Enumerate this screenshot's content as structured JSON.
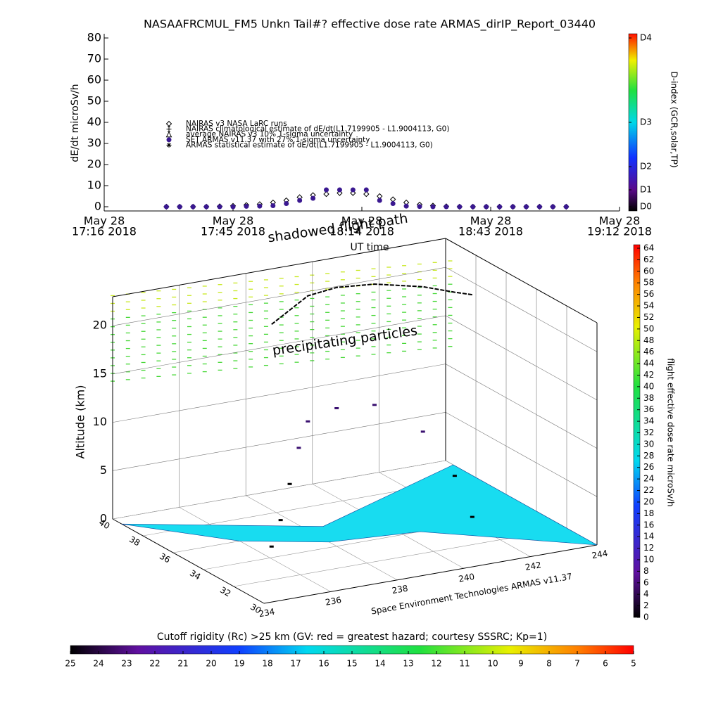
{
  "chart_data": [
    {
      "type": "scatter",
      "title": "NASAAFRCMUL_FM5 Unkn Tail#? effective dose rate ARMAS_dirIP_Report_03440",
      "y_label": "dE/dt microSv/h",
      "x_label": "UT time",
      "xlim": [
        "2018-05-28T17:16",
        "2018-05-28T19:12"
      ],
      "xticks": [
        {
          "value": "2018-05-28T17:16",
          "label": [
            "May 28",
            "17:16 2018"
          ]
        },
        {
          "value": "2018-05-28T17:45",
          "label": [
            "May 28",
            "17:45 2018"
          ]
        },
        {
          "value": "2018-05-28T18:14",
          "label": [
            "May 28",
            "18:14 2018"
          ]
        },
        {
          "value": "2018-05-28T18:43",
          "label": [
            "May 28",
            "18:43 2018"
          ]
        },
        {
          "value": "2018-05-28T19:12",
          "label": [
            "May 28",
            "19:12 2018"
          ]
        }
      ],
      "ylim": [
        -2,
        82
      ],
      "yticks": [
        0,
        10,
        20,
        30,
        40,
        50,
        60,
        70,
        80
      ],
      "x": [
        "2018-05-28T17:30",
        "2018-05-28T17:33",
        "2018-05-28T17:36",
        "2018-05-28T17:39",
        "2018-05-28T17:42",
        "2018-05-28T17:45",
        "2018-05-28T17:48",
        "2018-05-28T17:51",
        "2018-05-28T17:54",
        "2018-05-28T17:57",
        "2018-05-28T18:00",
        "2018-05-28T18:03",
        "2018-05-28T18:06",
        "2018-05-28T18:09",
        "2018-05-28T18:12",
        "2018-05-28T18:15",
        "2018-05-28T18:18",
        "2018-05-28T18:21",
        "2018-05-28T18:24",
        "2018-05-28T18:27",
        "2018-05-28T18:30",
        "2018-05-28T18:33",
        "2018-05-28T18:36",
        "2018-05-28T18:39",
        "2018-05-28T18:42",
        "2018-05-28T18:45",
        "2018-05-28T18:48",
        "2018-05-28T18:51",
        "2018-05-28T18:54",
        "2018-05-28T18:57",
        "2018-05-28T19:00"
      ],
      "series": [
        {
          "name": "NAIRAS v3 NASA LaRC runs",
          "marker": "diamond",
          "color": "#000000",
          "values": [
            0,
            0,
            0,
            0,
            0.2,
            0.4,
            0.8,
            1.2,
            2,
            3,
            4.5,
            5.5,
            6,
            6.5,
            6.5,
            6,
            5,
            3.5,
            2,
            1,
            0.5,
            0.2,
            0,
            0,
            0,
            0,
            0,
            0,
            0,
            0,
            0
          ]
        },
        {
          "name": "NAIRAS climatological estimate of dE/dt(L1.7199905 - L1.9004113, G0)",
          "marker": "plus",
          "color": "#000000"
        },
        {
          "name": "average NAIRAS v3 10% 1-sigma uncertainty",
          "marker": "triangle",
          "color": "#000000"
        },
        {
          "name": "SET ARMAS v11.37 with 27% 1-sigma uncertainty",
          "marker": "circle",
          "color": "#3a1890",
          "values": [
            0,
            0,
            0,
            0,
            0,
            0,
            0.2,
            0.3,
            0.5,
            1.5,
            3,
            4,
            8,
            8,
            8,
            8,
            3,
            1.5,
            0.3,
            0.1,
            0,
            0,
            0,
            0,
            0,
            0,
            0,
            0,
            0,
            0,
            0
          ]
        },
        {
          "name": "ARMAS statistical estimate of dE/dt(L1.7199905 - L1.9004113, G0)",
          "marker": "asterisk",
          "color": "#000000"
        }
      ],
      "colorbar_label": "D-index (GCR,solar,TP)",
      "colorbar_ticks": [
        {
          "value": 0,
          "label": "D0"
        },
        {
          "value": 8,
          "label": "D1"
        },
        {
          "value": 19,
          "label": "D2"
        },
        {
          "value": 40,
          "label": "D3"
        },
        {
          "value": 80,
          "label": "D4"
        }
      ]
    },
    {
      "type": "surface3d",
      "z_label": "Altitude (km)",
      "zlim": [
        0,
        23
      ],
      "zticks": [
        0,
        5,
        10,
        15,
        20
      ],
      "lon_lim": [
        234,
        244
      ],
      "lon_ticks": [
        234,
        236,
        238,
        240,
        242,
        244
      ],
      "lat_lim": [
        30,
        40
      ],
      "lat_ticks": [
        30,
        32,
        34,
        36,
        38,
        40
      ],
      "annotations": [
        "shadowed flight path",
        "precipitating particles"
      ],
      "credit": "Space Environment Technologies ARMAS v11.37",
      "flight_path": {
        "lon": [
          236.5,
          237,
          237.5,
          238,
          238.5,
          239.5,
          240.5,
          241.5,
          242,
          242.3
        ],
        "lat": [
          35,
          35.5,
          36,
          36.5,
          37,
          37.3,
          37,
          36,
          35,
          34.5
        ],
        "alt": [
          0,
          2,
          5,
          8,
          10,
          10.5,
          10.5,
          8,
          4,
          0
        ]
      },
      "dose_colorbar_label": "flight effective dose rate microSv/h",
      "dose_clim": [
        0,
        64
      ],
      "dose_ticks": [
        0,
        2,
        4,
        6,
        8,
        10,
        12,
        14,
        16,
        18,
        20,
        22,
        24,
        26,
        28,
        30,
        32,
        34,
        36,
        38,
        40,
        42,
        44,
        46,
        48,
        50,
        52,
        54,
        56,
        58,
        60,
        62,
        64
      ],
      "rigidity_colorbar_label": "Cutoff rigidity (Rc) >25 km (GV: red = greatest hazard; courtesy SSSRC; Kp=1)",
      "rigidity_clim": [
        25,
        5
      ],
      "rigidity_ticks": [
        25,
        24,
        23,
        22,
        21,
        20,
        19,
        18,
        17,
        16,
        15,
        14,
        13,
        12,
        11,
        10,
        9,
        8,
        7,
        6,
        5
      ]
    }
  ]
}
